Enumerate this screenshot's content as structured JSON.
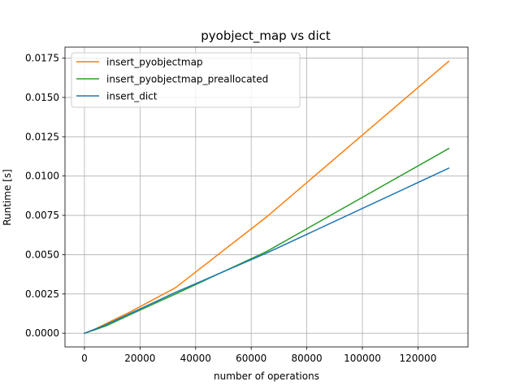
{
  "chart_data": {
    "type": "line",
    "title": "pyobject_map vs dict",
    "xlabel": "number of operations",
    "ylabel": "Runtime [s]",
    "xlim": [
      -7000,
      138000
    ],
    "ylim": [
      -0.00087,
      0.0182
    ],
    "xticks": [
      0,
      20000,
      40000,
      60000,
      80000,
      100000,
      120000
    ],
    "xtick_labels": [
      "0",
      "20000",
      "40000",
      "60000",
      "80000",
      "100000",
      "120000"
    ],
    "yticks": [
      0.0,
      0.0025,
      0.005,
      0.0075,
      0.01,
      0.0125,
      0.015,
      0.0175
    ],
    "ytick_labels": [
      "0.0000",
      "0.0025",
      "0.0050",
      "0.0075",
      "0.0100",
      "0.0125",
      "0.0150",
      "0.0175"
    ],
    "grid": true,
    "legend_position": "top-left",
    "x": [
      0,
      1024,
      2048,
      4096,
      8192,
      16384,
      32768,
      65536,
      131072
    ],
    "series": [
      {
        "name": "insert_pyobjectmap",
        "color": "#ff7f0e",
        "values": [
          0.0,
          7e-05,
          0.00014,
          0.00029,
          0.00065,
          0.00135,
          0.0029,
          0.0074,
          0.0173
        ]
      },
      {
        "name": "insert_pyobjectmap_preallocated",
        "color": "#2ca02c",
        "values": [
          0.0,
          6e-05,
          0.00012,
          0.00024,
          0.0005,
          0.00118,
          0.0025,
          0.0052,
          0.01175
        ]
      },
      {
        "name": "insert_dict",
        "color": "#1f77b4",
        "values": [
          0.0,
          7e-05,
          0.00014,
          0.00028,
          0.00058,
          0.00125,
          0.0026,
          0.0051,
          0.0105
        ]
      }
    ]
  }
}
